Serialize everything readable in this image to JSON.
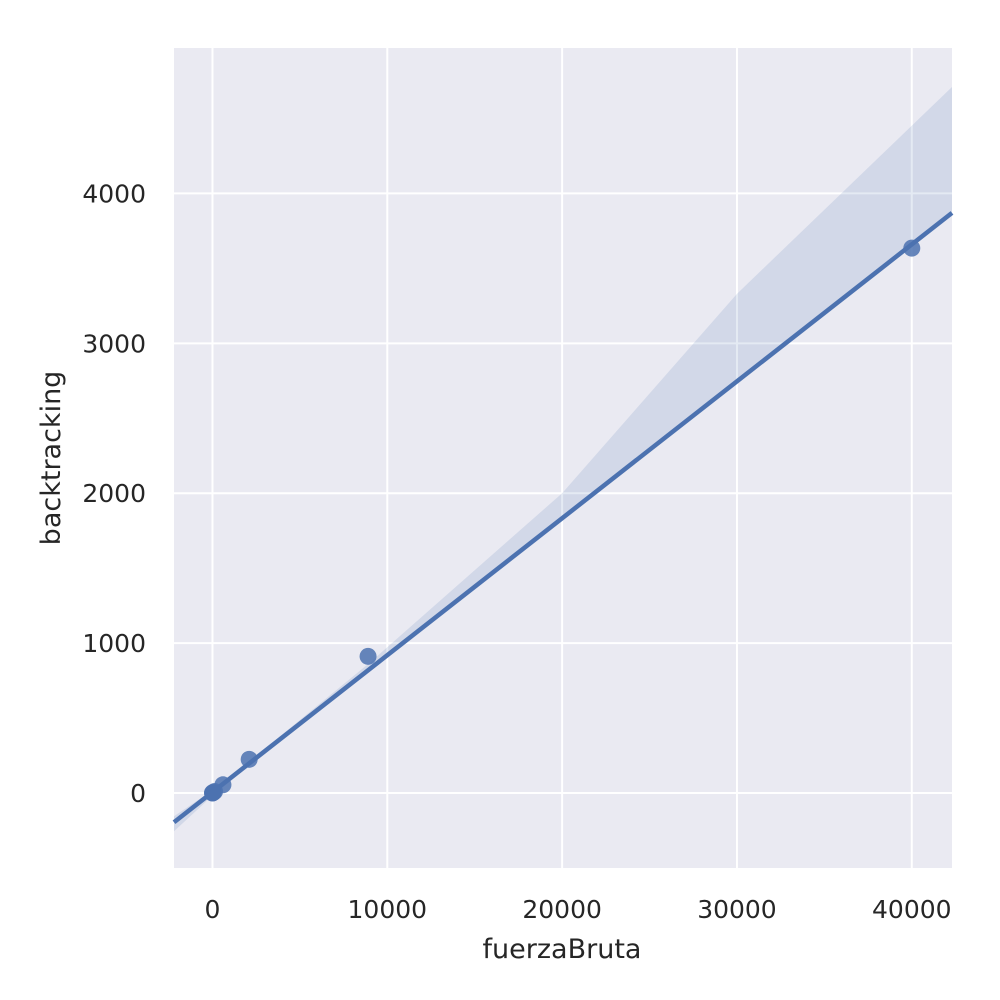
{
  "chart_data": {
    "type": "scatter",
    "title": "",
    "xlabel": "fuerzaBruta",
    "ylabel": "backtracking",
    "xlim": [
      -2200,
      42300
    ],
    "ylim": [
      -500,
      4970
    ],
    "xticks": [
      0,
      10000,
      20000,
      30000,
      40000
    ],
    "yticks": [
      0,
      1000,
      2000,
      3000,
      4000
    ],
    "grid": true,
    "legend": "none",
    "colors": {
      "background": "#eaeaf2",
      "grid": "#ffffff",
      "series": "#4c72b0",
      "band": "#4c72b0",
      "text": "#262626"
    },
    "series": [
      {
        "points": [
          {
            "x": 0,
            "y": 0
          },
          {
            "x": 10,
            "y": 1
          },
          {
            "x": 50,
            "y": 4
          },
          {
            "x": 120,
            "y": 10
          },
          {
            "x": 600,
            "y": 55
          },
          {
            "x": 2100,
            "y": 225
          },
          {
            "x": 8900,
            "y": 912
          },
          {
            "x": 40000,
            "y": 3635
          }
        ]
      }
    ],
    "regression": {
      "line": [
        [
          -2200,
          -195
        ],
        [
          42300,
          3870
        ]
      ],
      "ci_band": {
        "upper": [
          [
            -2200,
            -155
          ],
          [
            0,
            18
          ],
          [
            2000,
            200
          ],
          [
            9000,
            870
          ],
          [
            20000,
            2000
          ],
          [
            30000,
            3330
          ],
          [
            42300,
            4710
          ]
        ],
        "lower": [
          [
            -2200,
            -255
          ],
          [
            0,
            -18
          ],
          [
            2000,
            170
          ],
          [
            9000,
            810
          ],
          [
            20000,
            1830
          ],
          [
            30000,
            2750
          ],
          [
            42300,
            3870
          ]
        ]
      }
    }
  }
}
